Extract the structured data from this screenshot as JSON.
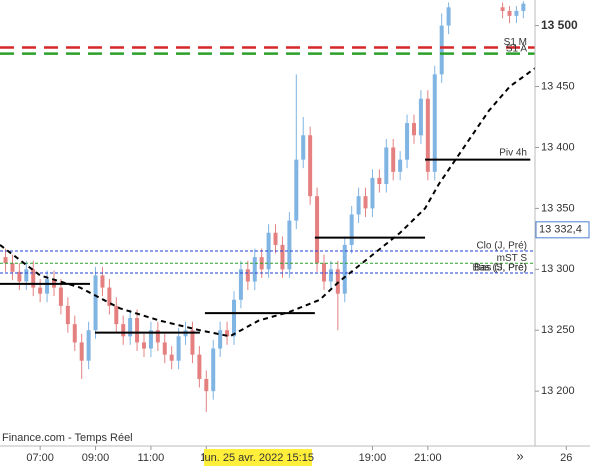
{
  "chart_data": {
    "type": "candlestick",
    "x": [
      5.75,
      6,
      6.25,
      6.5,
      6.75,
      7,
      7.25,
      7.5,
      7.75,
      8,
      8.25,
      8.5,
      8.75,
      9,
      9.25,
      9.5,
      9.75,
      10,
      10.25,
      10.5,
      10.75,
      11,
      11.25,
      11.5,
      11.75,
      12,
      12.25,
      12.5,
      12.75,
      13,
      13.25,
      13.5,
      13.75,
      14,
      14.25,
      14.5,
      14.75,
      15,
      15.25,
      15.5,
      15.75,
      16,
      16.25,
      16.5,
      16.75,
      17,
      17.25,
      17.5,
      17.75,
      18,
      18.25,
      18.5,
      18.75,
      19,
      19.25,
      19.5,
      19.75,
      20,
      20.25,
      20.5,
      20.75,
      21,
      21.25,
      21.5,
      21.75,
      23.7,
      23.95,
      24.2,
      24.45
    ],
    "open": [
      13310,
      13305,
      13298,
      13290,
      13300,
      13285,
      13280,
      13292,
      13285,
      13270,
      13255,
      13240,
      13225,
      13250,
      13295,
      13285,
      13270,
      13255,
      13245,
      13260,
      13240,
      13235,
      13250,
      13240,
      13230,
      13225,
      13245,
      13250,
      13230,
      13210,
      13200,
      13235,
      13250,
      13245,
      13275,
      13300,
      13290,
      13310,
      13300,
      13330,
      13320,
      13300,
      13340,
      13390,
      13410,
      13360,
      13305,
      13290,
      13300,
      13280,
      13320,
      13345,
      13360,
      13350,
      13375,
      13370,
      13400,
      13380,
      13390,
      13420,
      13410,
      13440,
      13380,
      13460,
      13500,
      13515,
      13512,
      13508,
      13512
    ],
    "high": [
      13317,
      13312,
      13305,
      13307,
      13307,
      13292,
      13299,
      13299,
      13292,
      13277,
      13262,
      13247,
      13257,
      13302,
      13302,
      13292,
      13277,
      13262,
      13267,
      13267,
      13247,
      13257,
      13257,
      13247,
      13237,
      13252,
      13257,
      13257,
      13237,
      13217,
      13242,
      13257,
      13257,
      13282,
      13307,
      13307,
      13317,
      13317,
      13337,
      13337,
      13327,
      13347,
      13460,
      13425,
      13417,
      13367,
      13312,
      13307,
      13307,
      13327,
      13352,
      13367,
      13367,
      13382,
      13382,
      13407,
      13407,
      13397,
      13427,
      13427,
      13447,
      13447,
      13467,
      13510,
      13519,
      13519,
      13516,
      13516,
      13520
    ],
    "low": [
      13298,
      13291,
      13283,
      13283,
      13278,
      13273,
      13273,
      13278,
      13263,
      13248,
      13233,
      13210,
      13218,
      13243,
      13278,
      13263,
      13248,
      13238,
      13238,
      13233,
      13228,
      13228,
      13233,
      13223,
      13218,
      13218,
      13238,
      13223,
      13203,
      13183,
      13193,
      13228,
      13238,
      13238,
      13268,
      13283,
      13283,
      13293,
      13293,
      13313,
      13293,
      13293,
      13333,
      13383,
      13353,
      13298,
      13283,
      13283,
      13250,
      13273,
      13313,
      13338,
      13343,
      13343,
      13363,
      13363,
      13373,
      13373,
      13383,
      13403,
      13403,
      13373,
      13373,
      13453,
      13493,
      13506,
      13502,
      13502,
      13506
    ],
    "close": [
      13305,
      13298,
      13290,
      13300,
      13285,
      13280,
      13292,
      13285,
      13270,
      13255,
      13240,
      13225,
      13250,
      13295,
      13285,
      13270,
      13255,
      13245,
      13260,
      13240,
      13235,
      13250,
      13240,
      13230,
      13225,
      13245,
      13250,
      13230,
      13210,
      13200,
      13235,
      13250,
      13245,
      13275,
      13300,
      13290,
      13310,
      13300,
      13330,
      13320,
      13300,
      13340,
      13390,
      13410,
      13360,
      13305,
      13290,
      13300,
      13280,
      13320,
      13345,
      13360,
      13350,
      13375,
      13370,
      13400,
      13380,
      13390,
      13420,
      13410,
      13440,
      13380,
      13460,
      13500,
      13515,
      13512,
      13508,
      13512,
      13518
    ],
    "up_color": "#7fb4e3",
    "down_color": "#e58080",
    "moving_average": {
      "color": "#000000",
      "x": [
        5.55,
        7,
        8.44,
        9.88,
        11.3,
        12.77,
        13.85,
        14.9,
        16,
        17.1,
        17.8,
        18.9,
        20,
        20.9,
        21.4,
        22.15,
        23.2,
        23.96,
        24.87
      ],
      "values": [
        13320,
        13295,
        13285,
        13268,
        13258,
        13250,
        13245,
        13258,
        13265,
        13275,
        13290,
        13310,
        13330,
        13350,
        13370,
        13395,
        13430,
        13450,
        13465
      ]
    },
    "levels": [
      {
        "name": "S1 M",
        "value": 13482,
        "color": "#d62728",
        "style": "dash"
      },
      {
        "name": "S1 A",
        "value": 13477,
        "color": "#2ca02c",
        "style": "dash"
      },
      {
        "name": "Clo (J, Pré)",
        "value": 13315,
        "color": "#1f3fd6",
        "style": "dot"
      },
      {
        "name": "mST S",
        "value": 13305,
        "color": "#2ca02c",
        "style": "dot"
      },
      {
        "name": "Bas (J, Pré)",
        "value": 13297,
        "color": "#1f3fd6",
        "style": "dot"
      },
      {
        "name": "Bas (S, Pré)",
        "value": 13297,
        "color": "#1f3fd6",
        "style": "dot"
      }
    ],
    "pivots": [
      {
        "value": 13288,
        "from": 5.55,
        "to": 8.8
      },
      {
        "value": 13248,
        "from": 8.98,
        "to": 12.77
      },
      {
        "value": 13264,
        "from": 12.95,
        "to": 16.92
      },
      {
        "value": 13326,
        "from": 16.92,
        "to": 20.9
      },
      {
        "name": "Piv 4h",
        "value": 13390,
        "from": 20.9,
        "to": 24.7
      }
    ],
    "last_price": {
      "value": 13332.4,
      "label": "13 332,4"
    },
    "xlim": [
      5.55,
      24.87
    ],
    "ylim": [
      13155,
      13521
    ],
    "xticks": [
      {
        "value": 7,
        "label": "07:00"
      },
      {
        "value": 9,
        "label": "09:00"
      },
      {
        "value": 11,
        "label": "11:00"
      },
      13,
      {
        "value": 19,
        "label": "19:00"
      },
      {
        "value": 21,
        "label": "21:00"
      },
      26
    ],
    "yticks": [
      {
        "value": 13200,
        "label": "13 200"
      },
      {
        "value": 13250,
        "label": "13 250"
      },
      {
        "value": 13300,
        "label": "13 300"
      },
      {
        "value": 13350,
        "label": "13 350"
      },
      {
        "value": 13400,
        "label": "13 400"
      },
      {
        "value": 13450,
        "label": "13 450"
      },
      {
        "value": 13500,
        "label": "13 500"
      }
    ],
    "cursor_label": "lun. 25 avr. 2022 15:15",
    "source": "Finance.com - Temps Réel",
    "scroll_button": "»"
  }
}
